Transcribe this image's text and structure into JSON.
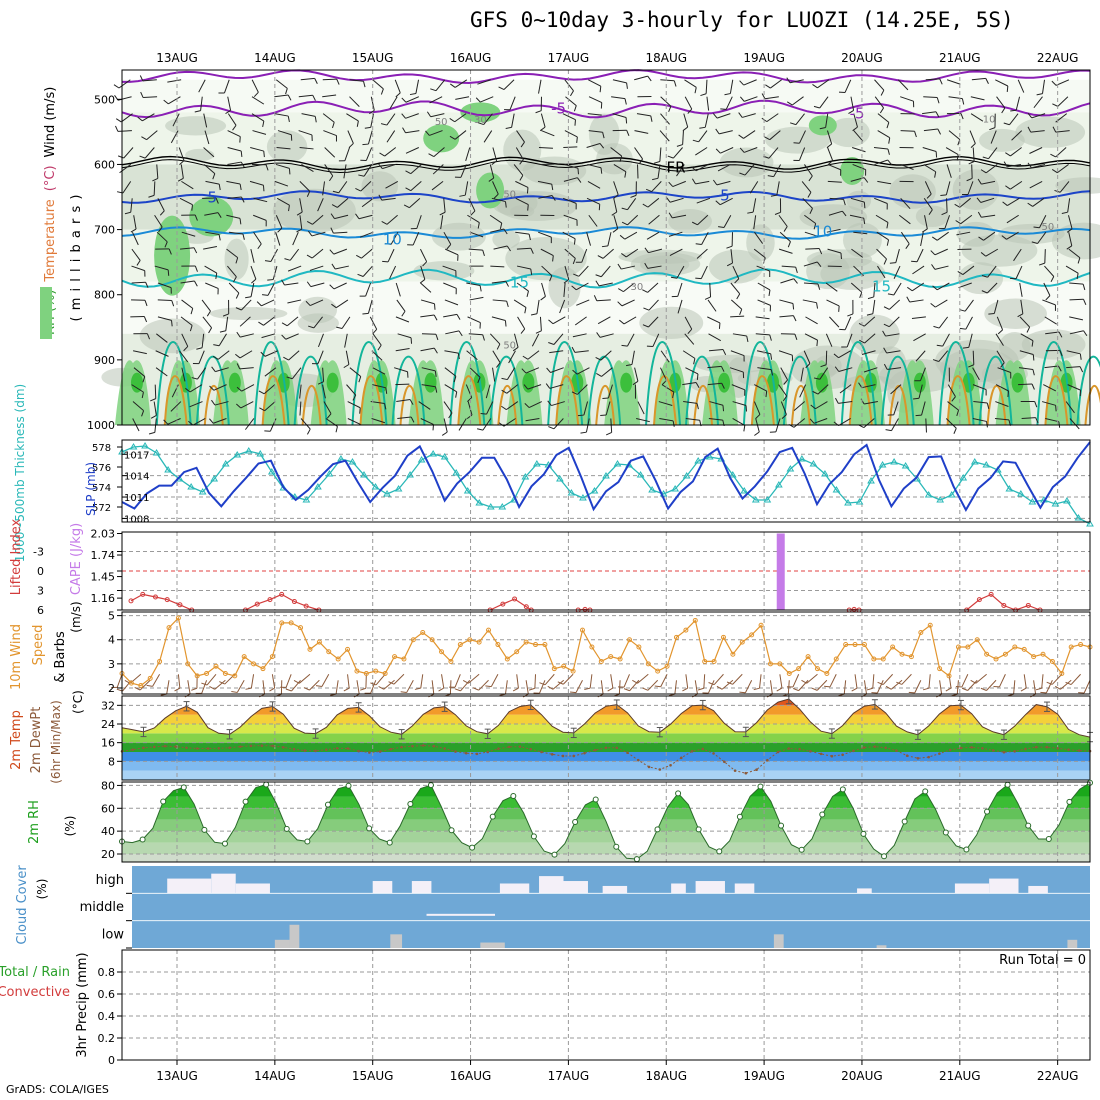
{
  "title": "GFS 0~10day 3-hourly for LUOZI (14.25E, 5S)",
  "credit": "GrADS: COLA/IGES",
  "colors": {
    "rh_light": "#eef5ea",
    "rh_grey": "#b9c4b6",
    "rh_green": "#7fd27f",
    "rh_dark_green": "#3cbf3c",
    "temp_purple": "#8a1fb5",
    "temp_black": "#000000",
    "temp_blue": "#1c44c8",
    "temp_lightblue": "#1a8ad6",
    "temp_cyan": "#1fb8c2",
    "temp_teal": "#12b59a",
    "temp_orange": "#d9962a",
    "slp_color": "#1f3fc8",
    "thickness_color": "#2ab8b8",
    "cape_color": "#c57be8",
    "li_color": "#d23c3c",
    "wind_color": "#e2952e",
    "barb_color": "#8c5a3a",
    "dewpt_color": "#8c5a3a",
    "rh2m_color": "#1fc01f",
    "cloud_blue": "#6fa8d6",
    "cloud_white": "#f4f0f8",
    "cloud_grey": "#c8c8c8"
  },
  "chart_data": [
    {
      "id": "upper-air",
      "type": "heatmap",
      "time_axis": {
        "labels": [
          "13AUG",
          "14AUG",
          "15AUG",
          "16AUG",
          "17AUG",
          "18AUG",
          "19AUG",
          "20AUG",
          "21AUG",
          "22AUG"
        ],
        "start_day_offset": -0.47,
        "end_day_offset": 9.2
      },
      "ylabel_parts": [
        {
          "text": "RH (%)",
          "color": "#2f9a2f"
        },
        {
          "text": "Temperature",
          "color": "#e07a3a"
        },
        {
          "text": "(°C)",
          "color": "#c03a6a"
        },
        {
          "text": "Wind (m/s)",
          "color": "#000000"
        }
      ],
      "ylabel2": "( m i l l i b a r s )",
      "y_ticks": [
        500,
        600,
        700,
        800,
        900,
        1000
      ],
      "ylim": [
        455,
        1000
      ],
      "contour_labels": [
        {
          "text": "-5",
          "day": 3.9,
          "level": 514,
          "color": "#8a1fb5"
        },
        {
          "text": "-5",
          "day": 6.95,
          "level": 522,
          "color": "#8a1fb5"
        },
        {
          "text": "FR",
          "day": 5.1,
          "level": 605,
          "color": "#000000"
        },
        {
          "text": "5",
          "day": 0.36,
          "level": 651,
          "color": "#1c44c8"
        },
        {
          "text": "5",
          "day": 5.6,
          "level": 648,
          "color": "#1c44c8"
        },
        {
          "text": "10",
          "day": 2.2,
          "level": 715,
          "color": "#1a8ad6"
        },
        {
          "text": "10",
          "day": 6.6,
          "level": 703,
          "color": "#1a8ad6"
        },
        {
          "text": "15",
          "day": 3.5,
          "level": 781,
          "color": "#1fb8c2"
        },
        {
          "text": "15",
          "day": 7.2,
          "level": 787,
          "color": "#1fb8c2"
        },
        {
          "text": "50",
          "day": 2.7,
          "level": 532,
          "color": "#808080"
        },
        {
          "text": "30",
          "day": 3.1,
          "level": 529,
          "color": "#808080"
        },
        {
          "text": "50",
          "day": 3.4,
          "level": 643,
          "color": "#808080"
        },
        {
          "text": "30",
          "day": 4.7,
          "level": 785,
          "color": "#808080"
        },
        {
          "text": "50",
          "day": 3.4,
          "level": 875,
          "color": "#808080"
        },
        {
          "text": "50",
          "day": 8.9,
          "level": 693,
          "color": "#808080"
        },
        {
          "text": "10",
          "day": 8.3,
          "level": 528,
          "color": "#808080"
        }
      ]
    },
    {
      "id": "slp-thickness",
      "type": "line",
      "ylabel_left": "1000~500mb Thickness (dm)",
      "ylabel_right": "SLP (mb)",
      "left_ticks": [
        572,
        574,
        576,
        578
      ],
      "right_ticks": [
        1008,
        1011,
        1014,
        1017
      ],
      "series": [
        {
          "name": "SLP (mb)",
          "axis": "right",
          "values": [
            1010.3,
            1009.4,
            1011.5,
            1012.6,
            1012.6,
            1014.5,
            1015.1,
            1011.6,
            1009.7,
            1011.8,
            1013.7,
            1015.7,
            1016.1,
            1012.4,
            1010.6,
            1012.0,
            1013.9,
            1015.6,
            1016.1,
            1013.1,
            1010.3,
            1012.3,
            1014.0,
            1016.8,
            1018.1,
            1014.6,
            1010.5,
            1012.9,
            1014.5,
            1016.5,
            1016.5,
            1013.5,
            1009.6,
            1012.5,
            1014.2,
            1016.9,
            1017.9,
            1013.8,
            1009.3,
            1011.8,
            1013.1,
            1016.1,
            1016.7,
            1013.3,
            1009.4,
            1011.7,
            1013.2,
            1016.6,
            1017.8,
            1013.7,
            1010.8,
            1012.5,
            1014.6,
            1017.3,
            1017.9,
            1014.3,
            1010.0,
            1012.8,
            1014.5,
            1017.0,
            1018.3,
            1013.4,
            1009.7,
            1012.2,
            1013.7,
            1016.6,
            1016.7,
            1012.5,
            1009.2,
            1012.2,
            1013.7,
            1016.0,
            1015.8,
            1012.6,
            1009.5,
            1012.4,
            1013.9,
            1016.5,
            1018.7
          ]
        },
        {
          "name": "Thickness (dm)",
          "axis": "left",
          "values": [
            577.5,
            578.0,
            578.1,
            577.4,
            575.7,
            574.8,
            574.0,
            573.5,
            574.8,
            576.3,
            577.2,
            577.6,
            577.3,
            575.5,
            573.9,
            573.0,
            572.7,
            574.0,
            575.3,
            576.8,
            576.5,
            575.2,
            574.0,
            573.3,
            573.8,
            575.2,
            576.7,
            577.3,
            577.0,
            575.4,
            573.6,
            572.4,
            572.0,
            572.0,
            572.7,
            575.0,
            576.3,
            576.2,
            574.8,
            573.4,
            572.9,
            573.6,
            575.1,
            576.3,
            576.2,
            575.2,
            573.7,
            573.3,
            573.8,
            575.1,
            576.6,
            577.0,
            576.8,
            575.2,
            573.6,
            572.7,
            572.7,
            574.2,
            575.8,
            576.8,
            576.3,
            575.3,
            573.7,
            572.4,
            572.5,
            574.6,
            576.2,
            576.5,
            576.1,
            574.8,
            573.2,
            572.7,
            573.2,
            574.9,
            576.5,
            576.2,
            575.7,
            573.8,
            573.3,
            572.5,
            572.7,
            572.3,
            572.6,
            570.9,
            570.3
          ]
        }
      ]
    },
    {
      "id": "cape-li",
      "type": "bar",
      "ylabel_left": "Lifted Index",
      "ylabel_right": "CAPE (J/kg)",
      "li_ticks": [
        -3,
        0,
        3,
        6
      ],
      "li_tick_labels": [
        "-3",
        "0",
        "3",
        "6"
      ],
      "cape_ticks": [
        1.16,
        1.45,
        1.74,
        2.03
      ],
      "cape_bars": [
        {
          "day": 6.17,
          "value": 2.03
        }
      ],
      "li_series": [
        {
          "day": -0.47,
          "value": 4.6
        },
        {
          "day": -0.35,
          "value": 3.6
        },
        {
          "day": -0.22,
          "value": 4.0
        },
        {
          "day": -0.1,
          "value": 4.4
        },
        {
          "day": 0.03,
          "value": 5.2
        },
        {
          "day": 0.15,
          "value": 6.0
        },
        {
          "day": 0.7,
          "value": 6.0
        },
        {
          "day": 0.82,
          "value": 5.1
        },
        {
          "day": 0.95,
          "value": 4.4
        },
        {
          "day": 1.07,
          "value": 3.6
        },
        {
          "day": 1.2,
          "value": 4.7
        },
        {
          "day": 1.32,
          "value": 5.4
        },
        {
          "day": 1.45,
          "value": 6.0
        },
        {
          "day": 3.2,
          "value": 6.0
        },
        {
          "day": 3.33,
          "value": 5.1
        },
        {
          "day": 3.45,
          "value": 4.3
        },
        {
          "day": 3.57,
          "value": 5.5
        },
        {
          "day": 3.62,
          "value": 6.0
        },
        {
          "day": 4.1,
          "value": 6.0
        },
        {
          "day": 4.17,
          "value": 5.9
        },
        {
          "day": 4.22,
          "value": 6.0
        },
        {
          "day": 6.87,
          "value": 6.0
        },
        {
          "day": 6.92,
          "value": 5.9
        },
        {
          "day": 6.97,
          "value": 6.0
        },
        {
          "day": 8.07,
          "value": 6.0
        },
        {
          "day": 8.2,
          "value": 4.4
        },
        {
          "day": 8.32,
          "value": 3.6
        },
        {
          "day": 8.45,
          "value": 5.3
        },
        {
          "day": 8.57,
          "value": 6.0
        },
        {
          "day": 8.7,
          "value": 5.3
        },
        {
          "day": 8.82,
          "value": 6.0
        }
      ]
    },
    {
      "id": "wind10m",
      "type": "line",
      "ylabel": "10m Wind Speed (m/s) & Barbs",
      "y_ticks": [
        2,
        3,
        4,
        5
      ],
      "ylim": [
        1.75,
        5.15
      ],
      "values": [
        2.6,
        2.2,
        2.1,
        2.4,
        3.1,
        4.5,
        4.9,
        3.0,
        2.5,
        2.6,
        2.9,
        2.6,
        2.5,
        3.3,
        3.0,
        2.8,
        3.3,
        4.7,
        4.7,
        4.5,
        3.6,
        3.9,
        3.5,
        3.2,
        3.6,
        2.7,
        2.6,
        2.7,
        2.6,
        3.3,
        3.2,
        4.0,
        4.3,
        4.0,
        3.5,
        3.1,
        3.8,
        4.0,
        3.9,
        4.4,
        3.8,
        3.2,
        3.5,
        3.9,
        3.8,
        3.8,
        2.8,
        2.9,
        2.7,
        4.4,
        3.7,
        3.1,
        3.3,
        3.2,
        4.0,
        3.7,
        3.0,
        2.7,
        2.9,
        4.1,
        4.4,
        4.8,
        3.1,
        3.1,
        4.1,
        3.4,
        3.9,
        4.2,
        4.6,
        3.0,
        3.0,
        2.6,
        2.8,
        3.3,
        2.8,
        2.6,
        3.2,
        3.8,
        3.8,
        3.8,
        3.2,
        3.2,
        3.7,
        3.4,
        3.3,
        4.3,
        4.6,
        2.8,
        2.5,
        3.7,
        3.7,
        4.0,
        3.4,
        3.2,
        3.4,
        3.7,
        3.6,
        3.3,
        3.4,
        3.1,
        2.6,
        3.7,
        3.8,
        3.7
      ]
    },
    {
      "id": "temp2m",
      "type": "area",
      "ylabel": "2m Temp 2m DewPt (6hr Min/Max)",
      "ylabel_lines": [
        "2m Temp",
        "2m DewPt",
        "(6hr Min/Max)"
      ],
      "y_ticks": [
        8,
        16,
        24,
        32
      ],
      "ylim": [
        0,
        36
      ],
      "temp_values": [
        22.4,
        21.5,
        20.6,
        22.3,
        26.5,
        29.7,
        31.6,
        29.0,
        22.4,
        20.0,
        19.6,
        22.7,
        27.2,
        30.7,
        31.5,
        28.2,
        22.2,
        20.1,
        19.9,
        22.6,
        27.9,
        30.7,
        31.1,
        27.5,
        22.8,
        20.5,
        19.6,
        23.2,
        28.1,
        30.9,
        31.4,
        28.0,
        23.2,
        20.7,
        19.8,
        23.4,
        29.3,
        31.5,
        32.2,
        28.0,
        23.0,
        20.5,
        20.2,
        24.0,
        28.7,
        31.6,
        32.3,
        28.8,
        23.2,
        20.7,
        20.5,
        23.9,
        28.5,
        31.8,
        32.1,
        29.7,
        24.3,
        20.7,
        20.6,
        24.6,
        30.0,
        33.4,
        34.7,
        30.4,
        24.9,
        20.9,
        19.9,
        23.3,
        28.6,
        31.6,
        32.4,
        28.8,
        23.1,
        20.6,
        19.4,
        23.2,
        28.3,
        31.8,
        32.1,
        28.4,
        22.8,
        20.6,
        19.4,
        23.1,
        28.0,
        32.3,
        31.4,
        28.2,
        21.7,
        19.4,
        18.4
      ],
      "dewpt_values": [
        12.3,
        13.0,
        13.8,
        14.2,
        14.5,
        14.3,
        13.8,
        13.5,
        13.5,
        13.6,
        13.8,
        14.3,
        14.6,
        14.7,
        14.6,
        14.0,
        13.2,
        12.6,
        12.5,
        13.0,
        13.6,
        13.5,
        12.4,
        11.8,
        12.2,
        13.2,
        14.1,
        14.5,
        14.8,
        14.5,
        13.5,
        12.2,
        11.5,
        11.2,
        12.0,
        13.4,
        14.2,
        14.3,
        13.2,
        12.0,
        11.0,
        10.3,
        10.3,
        11.5,
        12.8,
        13.8,
        13.8,
        11.7,
        8.5,
        5.6,
        4.5,
        6.3,
        9.5,
        12.3,
        13.3,
        11.4,
        7.8,
        4.0,
        2.9,
        4.4,
        8.5,
        12.0,
        13.5,
        13.2,
        12.3,
        11.2,
        10.2,
        10.8,
        12.5,
        13.9,
        14.3,
        13.8,
        12.6,
        10.4,
        9.3,
        9.8,
        11.3,
        12.9,
        13.7,
        14.0,
        13.6,
        12.7,
        11.9,
        12.3,
        13.3,
        14.1,
        14.1,
        13.6,
        13.0,
        12.6,
        12.4
      ]
    },
    {
      "id": "rh2m",
      "type": "area",
      "ylabel": "2m RH (%)",
      "y_ticks": [
        20,
        40,
        60,
        80
      ],
      "ylim": [
        13,
        83
      ],
      "values": [
        30.9,
        30.0,
        32.7,
        42.6,
        65.9,
        75.4,
        78.3,
        63.7,
        41.1,
        30.2,
        29.1,
        43.3,
        65.8,
        78.2,
        80.8,
        63.8,
        42.0,
        32.3,
        30.9,
        42.1,
        63.2,
        77.1,
        79.7,
        63.4,
        42.4,
        33.1,
        30.0,
        44.3,
        63.8,
        77.3,
        80.3,
        61.6,
        40.8,
        29.9,
        25.6,
        33.5,
        52.7,
        66.6,
        70.8,
        56.0,
        35.4,
        22.5,
        19.5,
        29.0,
        48.0,
        63.0,
        67.7,
        48.6,
        26.3,
        16.2,
        15.5,
        22.4,
        41.5,
        61.2,
        73.1,
        63.1,
        41.5,
        26.3,
        22.3,
        31.5,
        52.6,
        70.5,
        79.1,
        66.1,
        44.8,
        28.1,
        23.7,
        33.3,
        54.6,
        70.3,
        76.5,
        60.1,
        37.6,
        24.4,
        18.0,
        27.6,
        48.4,
        68.1,
        74.8,
        59.2,
        38.8,
        27.2,
        23.9,
        36.7,
        57.1,
        73.5,
        80.6,
        64.2,
        44.8,
        33.1,
        33.1,
        45.5,
        65.6,
        76.7,
        82.3
      ]
    },
    {
      "id": "cloud",
      "type": "heatmap",
      "ylabel": "Cloud Cover (%)",
      "row_labels": [
        "high",
        "middle",
        "low"
      ]
    },
    {
      "id": "precip",
      "type": "bar",
      "ylabel_lines": [
        "Total / Rain",
        "Convective"
      ],
      "ylabel2": "3hr Precip (mm)",
      "y_ticks": [
        0,
        0.2,
        0.4,
        0.6,
        0.8
      ],
      "y_tick_labels": [
        "0",
        "0.2",
        "0.4",
        "0.6",
        "0.8"
      ],
      "ylim": [
        0,
        1
      ],
      "run_total_label": "Run Total = 0",
      "values": []
    }
  ]
}
